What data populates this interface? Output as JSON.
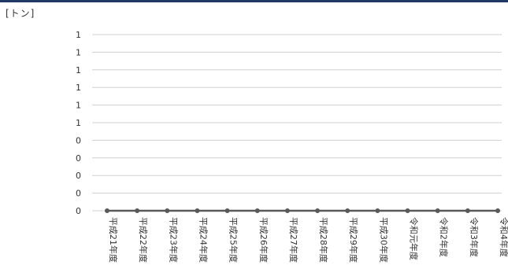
{
  "chart_data": {
    "type": "line",
    "unit_label": "[トン]",
    "categories": [
      "平成21年度",
      "平成22年度",
      "平成23年度",
      "平成24年度",
      "平成25年度",
      "平成26年度",
      "平成27年度",
      "平成28年度",
      "平成29年度",
      "平成30年度",
      "令和元年度",
      "令和2年度",
      "令和3年度",
      "令和4年度"
    ],
    "y_tick_labels": [
      "0",
      "0",
      "0",
      "0",
      "0",
      "1",
      "1",
      "1",
      "1",
      "1",
      "1"
    ],
    "ylim": [
      0,
      1
    ],
    "series": [
      {
        "values": [
          0,
          0,
          0,
          0,
          0,
          0,
          0,
          0,
          0,
          0,
          0,
          0,
          0,
          0
        ],
        "color": "#595959"
      }
    ],
    "grid": true,
    "gridline_color": "#d0d0d0",
    "legend": "none"
  }
}
